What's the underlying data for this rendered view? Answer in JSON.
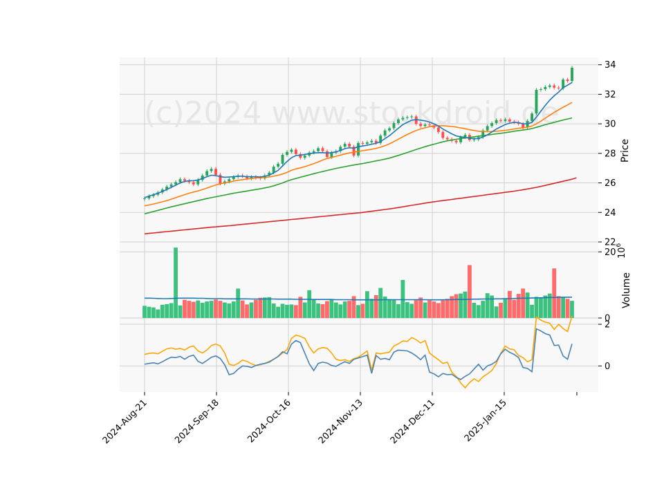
{
  "chart_data": {
    "type": "candlestick",
    "watermark": "(c)2024 www.stockdroid.de",
    "x_tick_labels": [
      "2024-Aug-21",
      "2024-Sep-18",
      "2024-Oct-16",
      "2024-Nov-13",
      "2024-Dec-11",
      "2025-Jan-15"
    ],
    "price_panel": {
      "ylabel": "Price",
      "ylim": [
        22,
        34.5
      ],
      "ticks": [
        22,
        24,
        26,
        28,
        30,
        32,
        34
      ],
      "close": [
        24.95,
        25.1,
        25.2,
        25.35,
        25.55,
        25.75,
        25.9,
        26.05,
        26.25,
        26.15,
        26.05,
        25.9,
        26.2,
        26.5,
        26.8,
        26.95,
        26.55,
        25.95,
        26.1,
        26.25,
        26.4,
        26.5,
        26.45,
        26.3,
        26.4,
        26.35,
        26.3,
        26.5,
        26.7,
        27.1,
        27.3,
        27.9,
        28.1,
        28.25,
        27.95,
        27.7,
        27.85,
        28.05,
        28.15,
        28.35,
        28.15,
        27.75,
        28.05,
        28.15,
        28.45,
        28.65,
        28.45,
        27.85,
        28.7,
        28.65,
        28.75,
        28.85,
        28.7,
        29.2,
        29.55,
        29.7,
        30.05,
        30.3,
        30.4,
        30.45,
        30.5,
        30.0,
        29.85,
        29.95,
        29.9,
        29.75,
        29.45,
        29.05,
        28.95,
        28.85,
        28.75,
        29.1,
        29.25,
        28.9,
        28.95,
        29.1,
        29.55,
        29.85,
        30.05,
        30.25,
        30.2,
        30.3,
        30.15,
        30.1,
        30.0,
        29.75,
        30.2,
        30.7,
        32.3,
        32.35,
        32.5,
        32.6,
        32.45,
        32.4,
        33.0,
        32.9,
        33.8
      ],
      "sma_short": [
        25.0,
        25.1,
        25.2,
        25.3,
        25.42,
        25.55,
        25.7,
        25.85,
        26.0,
        26.1,
        26.15,
        26.15,
        26.2,
        26.3,
        26.42,
        26.52,
        26.5,
        26.42,
        26.38,
        26.4,
        26.42,
        26.45,
        26.45,
        26.42,
        26.42,
        26.42,
        26.4,
        26.45,
        26.52,
        26.68,
        26.85,
        27.15,
        27.45,
        27.7,
        27.85,
        27.88,
        27.92,
        27.98,
        28.02,
        28.05,
        28.05,
        28.02,
        28.05,
        28.1,
        28.2,
        28.32,
        28.38,
        28.35,
        28.45,
        28.5,
        28.55,
        28.62,
        28.68,
        28.8,
        29.0,
        29.2,
        29.45,
        29.7,
        29.95,
        30.1,
        30.25,
        30.28,
        30.25,
        30.2,
        30.12,
        30.0,
        29.85,
        29.65,
        29.48,
        29.32,
        29.18,
        29.12,
        29.08,
        29.02,
        29.0,
        29.0,
        29.1,
        29.25,
        29.45,
        29.65,
        29.8,
        29.95,
        30.05,
        30.1,
        30.08,
        30.0,
        30.0,
        30.1,
        30.45,
        30.85,
        31.25,
        31.6,
        31.9,
        32.15,
        32.45,
        32.62,
        32.8
      ],
      "sma_mid": [
        24.45,
        24.5,
        24.57,
        24.64,
        24.72,
        24.8,
        24.9,
        25.0,
        25.1,
        25.2,
        25.3,
        25.38,
        25.46,
        25.55,
        25.65,
        25.76,
        25.86,
        25.94,
        26.0,
        26.06,
        26.12,
        26.18,
        26.22,
        26.26,
        26.3,
        26.33,
        26.35,
        26.37,
        26.4,
        26.45,
        26.52,
        26.6,
        26.72,
        26.85,
        26.95,
        27.02,
        27.1,
        27.2,
        27.3,
        27.42,
        27.55,
        27.65,
        27.72,
        27.8,
        27.88,
        27.96,
        28.03,
        28.08,
        28.13,
        28.18,
        28.23,
        28.28,
        28.34,
        28.42,
        28.52,
        28.65,
        28.8,
        28.96,
        29.12,
        29.28,
        29.42,
        29.55,
        29.65,
        29.73,
        29.8,
        29.85,
        29.87,
        29.87,
        29.85,
        29.82,
        29.78,
        29.72,
        29.67,
        29.6,
        29.55,
        29.5,
        29.48,
        29.47,
        29.48,
        29.5,
        29.53,
        29.56,
        29.6,
        29.65,
        29.7,
        29.73,
        29.77,
        29.85,
        30.0,
        30.18,
        30.38,
        30.58,
        30.78,
        30.95,
        31.12,
        31.28,
        31.45
      ],
      "sma_long": [
        23.9,
        23.98,
        24.06,
        24.14,
        24.22,
        24.3,
        24.38,
        24.45,
        24.52,
        24.59,
        24.66,
        24.73,
        24.8,
        24.87,
        24.94,
        25.0,
        25.06,
        25.12,
        25.18,
        25.24,
        25.3,
        25.35,
        25.4,
        25.45,
        25.5,
        25.55,
        25.6,
        25.66,
        25.72,
        25.8,
        25.9,
        26.0,
        26.12,
        26.22,
        26.3,
        26.38,
        26.46,
        26.54,
        26.62,
        26.7,
        26.77,
        26.84,
        26.91,
        26.98,
        27.04,
        27.1,
        27.16,
        27.21,
        27.26,
        27.31,
        27.37,
        27.43,
        27.49,
        27.55,
        27.61,
        27.68,
        27.77,
        27.86,
        27.96,
        28.06,
        28.16,
        28.26,
        28.36,
        28.45,
        28.54,
        28.62,
        28.7,
        28.78,
        28.85,
        28.9,
        28.95,
        29.0,
        29.04,
        29.08,
        29.12,
        29.16,
        29.2,
        29.24,
        29.28,
        29.32,
        29.36,
        29.4,
        29.45,
        29.5,
        29.54,
        29.58,
        29.62,
        29.68,
        29.76,
        29.85,
        29.94,
        30.02,
        30.1,
        30.18,
        30.26,
        30.33,
        30.4
      ],
      "sma_200": [
        22.55,
        22.58,
        22.61,
        22.64,
        22.67,
        22.7,
        22.73,
        22.76,
        22.79,
        22.82,
        22.85,
        22.88,
        22.91,
        22.94,
        22.97,
        23.0,
        23.02,
        23.05,
        23.07,
        23.1,
        23.13,
        23.16,
        23.19,
        23.22,
        23.25,
        23.28,
        23.31,
        23.34,
        23.37,
        23.4,
        23.43,
        23.46,
        23.49,
        23.52,
        23.55,
        23.58,
        23.61,
        23.64,
        23.67,
        23.7,
        23.73,
        23.76,
        23.79,
        23.82,
        23.85,
        23.88,
        23.91,
        23.94,
        23.97,
        24.0,
        24.04,
        24.08,
        24.12,
        24.16,
        24.2,
        24.24,
        24.28,
        24.33,
        24.38,
        24.43,
        24.48,
        24.53,
        24.58,
        24.63,
        24.68,
        24.72,
        24.76,
        24.8,
        24.84,
        24.88,
        24.92,
        24.96,
        25.0,
        25.04,
        25.08,
        25.12,
        25.16,
        25.2,
        25.24,
        25.28,
        25.32,
        25.36,
        25.4,
        25.44,
        25.49,
        25.54,
        25.59,
        25.64,
        25.7,
        25.76,
        25.83,
        25.9,
        25.97,
        26.04,
        26.11,
        26.18,
        26.25,
        26.35
      ]
    },
    "volume_panel": {
      "ylabel": "Volume",
      "ylabel_exponent": "10^6",
      "ylim": [
        0,
        23
      ],
      "ticks": [
        0,
        20
      ],
      "volume": [
        3.7,
        3.4,
        3.2,
        2.6,
        4.0,
        4.2,
        4.5,
        21.3,
        3.8,
        5.5,
        5.2,
        4.9,
        5.3,
        4.6,
        5.0,
        5.2,
        5.6,
        5.2,
        4.7,
        4.4,
        5.0,
        8.9,
        5.3,
        4.1,
        4.7,
        5.5,
        6.1,
        6.2,
        6.3,
        4.4,
        3.4,
        4.3,
        4.0,
        4.1,
        3.9,
        6.4,
        4.7,
        8.4,
        5.5,
        4.4,
        4.2,
        5.1,
        5.7,
        4.7,
        4.1,
        5.0,
        5.2,
        6.6,
        3.9,
        4.3,
        8.1,
        5.8,
        6.9,
        9.1,
        6.5,
        5.7,
        5.5,
        4.2,
        11.5,
        4.8,
        4.3,
        5.4,
        6.2,
        4.7,
        5.3,
        5.0,
        4.5,
        5.3,
        5.8,
        6.6,
        7.2,
        7.4,
        8.0,
        16.0,
        4.6,
        3.9,
        5.2,
        7.5,
        6.8,
        3.5,
        4.6,
        6.0,
        8.2,
        5.5,
        7.3,
        8.9,
        7.7,
        4.0,
        6.4,
        6.1,
        6.8,
        7.4,
        15.0,
        6.6,
        6.4,
        5.8,
        5.2
      ],
      "volume_ma": [
        6.0,
        6.0,
        5.95,
        5.9,
        5.85,
        5.85,
        5.9,
        5.95,
        6.0,
        6.0,
        6.0,
        6.0,
        5.95,
        5.95,
        5.9,
        5.85,
        5.85,
        5.85,
        5.8,
        5.8,
        5.8,
        5.8,
        5.8,
        5.8,
        5.75,
        5.75,
        5.75,
        5.75,
        5.75,
        5.75,
        5.7,
        5.7,
        5.7,
        5.7,
        5.65,
        5.65,
        5.65,
        5.65,
        5.6,
        5.6,
        5.6,
        5.6,
        5.6,
        5.55,
        5.55,
        5.55,
        5.55,
        5.5,
        5.5,
        5.5,
        5.5,
        5.5,
        5.5,
        5.5,
        5.55,
        5.55,
        5.55,
        5.55,
        5.55,
        5.55,
        5.55,
        5.55,
        5.55,
        5.55,
        5.5,
        5.5,
        5.5,
        5.5,
        5.55,
        5.55,
        5.6,
        5.6,
        5.6,
        5.65,
        5.7,
        5.7,
        5.75,
        5.75,
        5.75,
        5.8,
        5.8,
        5.85,
        5.85,
        5.9,
        5.95,
        6.0,
        6.0,
        6.05,
        6.1,
        6.1,
        6.15,
        6.2,
        6.2,
        6.25,
        6.25,
        6.3,
        6.3
      ]
    },
    "oscillator_panel": {
      "ylim": [
        -1.25,
        2.3
      ],
      "ticks": [
        0,
        2
      ],
      "line_orange": [
        0.55,
        0.6,
        0.62,
        0.58,
        0.7,
        0.82,
        0.86,
        0.8,
        0.84,
        0.76,
        0.9,
        0.96,
        0.72,
        0.62,
        0.76,
        0.98,
        1.05,
        0.96,
        0.62,
        0.08,
        0.02,
        0.12,
        0.28,
        0.22,
        0.1,
        0.02,
        0.06,
        0.12,
        0.22,
        0.32,
        0.45,
        0.62,
        0.78,
        1.32,
        1.48,
        1.42,
        1.32,
        0.92,
        0.62,
        0.82,
        0.88,
        0.85,
        0.62,
        0.32,
        0.26,
        0.3,
        0.22,
        0.35,
        0.42,
        0.56,
        0.72,
        -0.2,
        0.62,
        0.58,
        0.62,
        0.66,
        0.96,
        1.06,
        1.2,
        1.18,
        1.36,
        1.26,
        1.1,
        1.22,
        0.62,
        0.45,
        0.3,
        0.12,
        0.18,
        -0.3,
        -0.5,
        -0.82,
        -1.05,
        -0.8,
        -0.62,
        -0.75,
        -0.52,
        -0.38,
        -0.22,
        0.12,
        0.6,
        0.95,
        0.82,
        0.78,
        0.5,
        0.4,
        0.2,
        0.3,
        2.35,
        2.2,
        2.1,
        2.05,
        1.75,
        2.0,
        1.8,
        1.65,
        2.4
      ],
      "line_blue": [
        0.08,
        0.12,
        0.15,
        0.1,
        0.2,
        0.32,
        0.42,
        0.4,
        0.46,
        0.32,
        0.46,
        0.52,
        0.22,
        0.12,
        0.26,
        0.42,
        0.48,
        0.36,
        0.05,
        -0.42,
        -0.36,
        -0.16,
        0.0,
        -0.02,
        -0.08,
        0.02,
        0.08,
        0.12,
        0.18,
        0.32,
        0.46,
        0.68,
        0.58,
        1.05,
        1.22,
        1.12,
        0.6,
        0.1,
        -0.22,
        0.12,
        0.18,
        0.14,
        0.02,
        -0.02,
        0.1,
        0.2,
        0.12,
        0.32,
        0.38,
        0.45,
        0.52,
        -0.36,
        0.5,
        0.32,
        0.36,
        0.3,
        0.66,
        0.76,
        0.74,
        0.72,
        0.62,
        0.48,
        0.3,
        0.52,
        -0.3,
        -0.38,
        -0.52,
        -0.36,
        -0.42,
        -0.4,
        -0.55,
        -0.65,
        -0.5,
        -0.38,
        -0.15,
        0.08,
        -0.2,
        0.0,
        0.08,
        0.22,
        0.58,
        0.8,
        0.65,
        0.55,
        0.4,
        -0.08,
        -0.12,
        -0.28,
        1.78,
        1.68,
        1.55,
        1.48,
        0.98,
        1.0,
        0.48,
        0.32,
        1.06
      ]
    },
    "colors": {
      "up": "#26a65b",
      "down": "#ff4d4d",
      "volume_up": "#3bc27f",
      "volume_down": "#ff6b6b",
      "sma_short": "#1f77b4",
      "sma_mid": "#ff7f0e",
      "sma_long": "#2ca02c",
      "sma_200": "#d62728",
      "volume_ma": "#1f77b4",
      "osc_orange": "#ffa500",
      "osc_blue": "#4682b4",
      "panel_bg": "#f8f8f8",
      "grid": "#d0d0d0"
    }
  }
}
